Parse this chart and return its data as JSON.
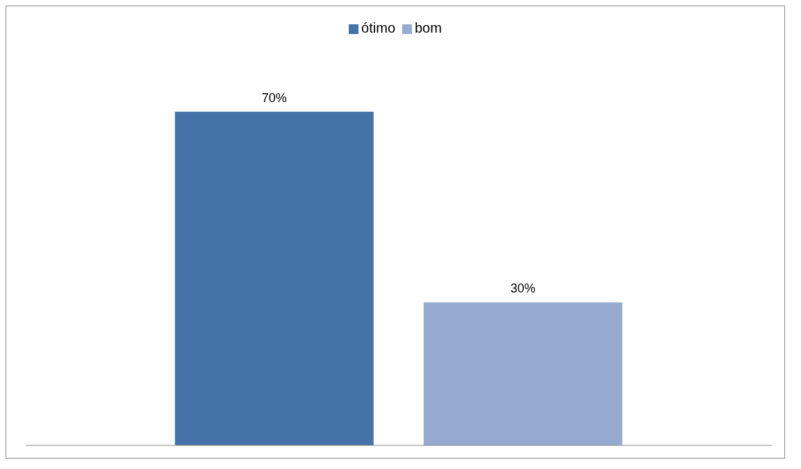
{
  "chart_data": {
    "type": "bar",
    "categories": [
      null
    ],
    "series": [
      {
        "name": "ótimo",
        "color": "#4673a7",
        "values": [
          70
        ],
        "value_labels": [
          "70%"
        ]
      },
      {
        "name": "bom",
        "color": "#97abd1",
        "values": [
          30
        ],
        "value_labels": [
          "30%"
        ]
      }
    ],
    "legend": "top"
  }
}
